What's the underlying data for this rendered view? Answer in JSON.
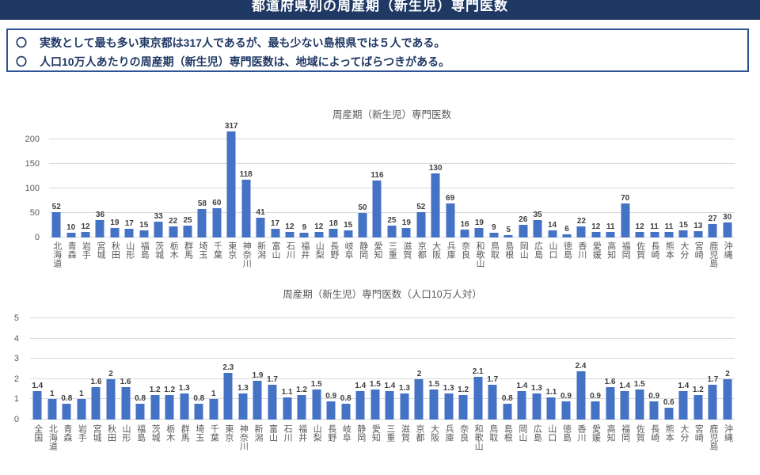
{
  "header": {
    "title": "都道府県別の周産期（新生児）専門医数"
  },
  "callout": {
    "bullets": [
      {
        "marker": "〇",
        "text": "実数として最も多い東京都は317人であるが、最も少ない島根県では５人である。"
      },
      {
        "marker": "〇",
        "text": "人口10万人あたりの周産期（新生児）専門医数は、地域によってばらつきがある。"
      }
    ]
  },
  "colors": {
    "header_bg": "#1F3864",
    "box_border": "#2E5496",
    "box_text": "#1F3864",
    "bar": "#4472C4",
    "gridline": "#D9D9D9",
    "axis_text": "#595959"
  },
  "chart_data": [
    {
      "type": "bar",
      "title": "周産期（新生児）専門医数",
      "categories": [
        "北海道",
        "青森",
        "岩手",
        "宮城",
        "秋田",
        "山形",
        "福島",
        "茨城",
        "栃木",
        "群馬",
        "埼玉",
        "千葉",
        "東京",
        "神奈川",
        "新潟",
        "富山",
        "石川",
        "福井",
        "山梨",
        "長野",
        "岐阜",
        "静岡",
        "愛知",
        "三重",
        "滋賀",
        "京都",
        "大阪",
        "兵庫",
        "奈良",
        "和歌山",
        "鳥取",
        "島根",
        "岡山",
        "広島",
        "山口",
        "徳島",
        "香川",
        "愛媛",
        "高知",
        "福岡",
        "佐賀",
        "長崎",
        "熊本",
        "大分",
        "宮崎",
        "鹿児島",
        "沖縄"
      ],
      "values": [
        52,
        10,
        12,
        36,
        19,
        17,
        15,
        33,
        22,
        25,
        58,
        60,
        317,
        118,
        41,
        17,
        12,
        9,
        12,
        18,
        15,
        50,
        116,
        25,
        19,
        52,
        130,
        69,
        16,
        19,
        9,
        5,
        26,
        35,
        14,
        6,
        22,
        12,
        11,
        70,
        12,
        11,
        11,
        15,
        13,
        27,
        30
      ],
      "xlabel": "",
      "ylabel": "",
      "yticks": [
        0,
        50,
        100,
        150,
        200
      ],
      "ylim": [
        0,
        216
      ],
      "grid": "horizontal",
      "legend": "none"
    },
    {
      "type": "bar",
      "title": "周産期（新生児）専門医数（人口10万人対）",
      "categories": [
        "全国",
        "北海道",
        "青森",
        "岩手",
        "宮城",
        "秋田",
        "山形",
        "福島",
        "茨城",
        "栃木",
        "群馬",
        "埼玉",
        "千葉",
        "東京",
        "神奈川",
        "新潟",
        "富山",
        "石川",
        "福井",
        "山梨",
        "長野",
        "岐阜",
        "静岡",
        "愛知",
        "三重",
        "滋賀",
        "京都",
        "大阪",
        "兵庫",
        "奈良",
        "和歌山",
        "鳥取",
        "島根",
        "岡山",
        "広島",
        "山口",
        "徳島",
        "香川",
        "愛媛",
        "高知",
        "福岡",
        "佐賀",
        "長崎",
        "熊本",
        "大分",
        "宮崎",
        "鹿児島",
        "沖縄"
      ],
      "values": [
        1.4,
        1,
        0.8,
        1,
        1.6,
        2,
        1.6,
        0.8,
        1.2,
        1.2,
        1.3,
        0.8,
        1,
        2.3,
        1.3,
        1.9,
        1.7,
        1.1,
        1.2,
        1.5,
        0.9,
        0.8,
        1.4,
        1.5,
        1.4,
        1.3,
        2,
        1.5,
        1.3,
        1.2,
        2.1,
        1.7,
        0.8,
        1.4,
        1.3,
        1.1,
        0.9,
        2.4,
        0.9,
        1.6,
        1.4,
        1.5,
        0.9,
        0.6,
        1.4,
        1.2,
        1.7,
        2
      ],
      "xlabel": "",
      "ylabel": "",
      "yticks": [
        0,
        1,
        2,
        3,
        4,
        5
      ],
      "ylim": [
        0,
        5
      ],
      "grid": "horizontal",
      "legend": "none"
    }
  ]
}
